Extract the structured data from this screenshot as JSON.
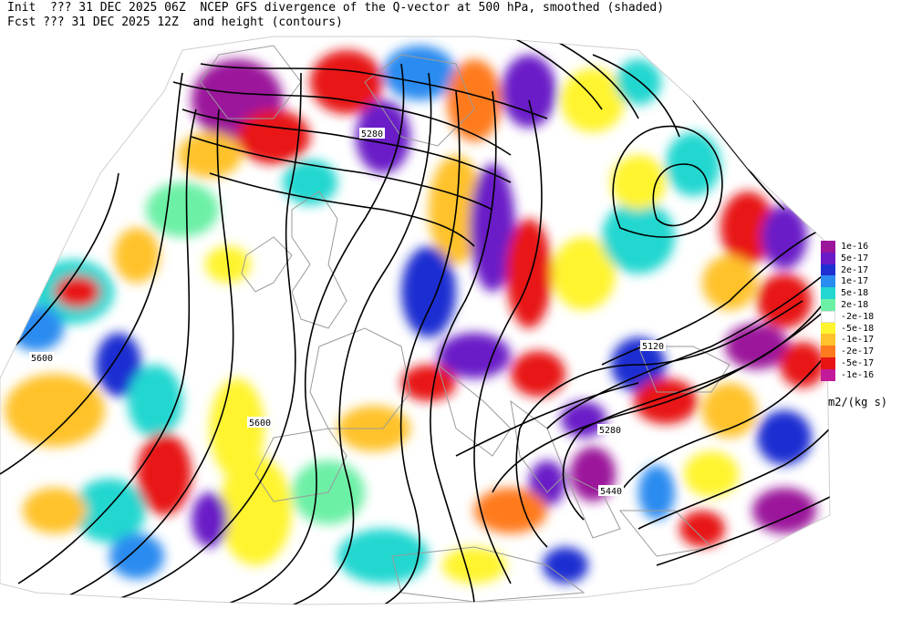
{
  "header": {
    "init_line": "Init  ??? 31 DEC 2025 06Z  NCEP GFS divergence of the Q-vector at 500 hPa, smoothed (shaded)",
    "fcst_line": "Fcst ??? 31 DEC 2025 12Z  and height (contours)"
  },
  "colorbar": {
    "units": "m2/(kg s)",
    "levels": [
      {
        "label": "1e-16",
        "color": "#9b169b"
      },
      {
        "label": "5e-17",
        "color": "#6a1bc7"
      },
      {
        "label": "2e-17",
        "color": "#1f2fd1"
      },
      {
        "label": "1e-17",
        "color": "#2a8bf0"
      },
      {
        "label": "5e-18",
        "color": "#22d7d0"
      },
      {
        "label": "2e-18",
        "color": "#6cf0a6"
      },
      {
        "label": "-2e-18",
        "color": "#ffffff"
      },
      {
        "label": "-5e-18",
        "color": "#fff42e"
      },
      {
        "label": "-1e-17",
        "color": "#ffc22a"
      },
      {
        "label": "-2e-17",
        "color": "#ff7a1f"
      },
      {
        "label": "-5e-17",
        "color": "#e81414"
      },
      {
        "label": "-1e-16",
        "color": "#c21a9a"
      }
    ]
  },
  "contour_labels": [
    "5280",
    "5600",
    "5600",
    "5120",
    "5280",
    "5440"
  ]
}
